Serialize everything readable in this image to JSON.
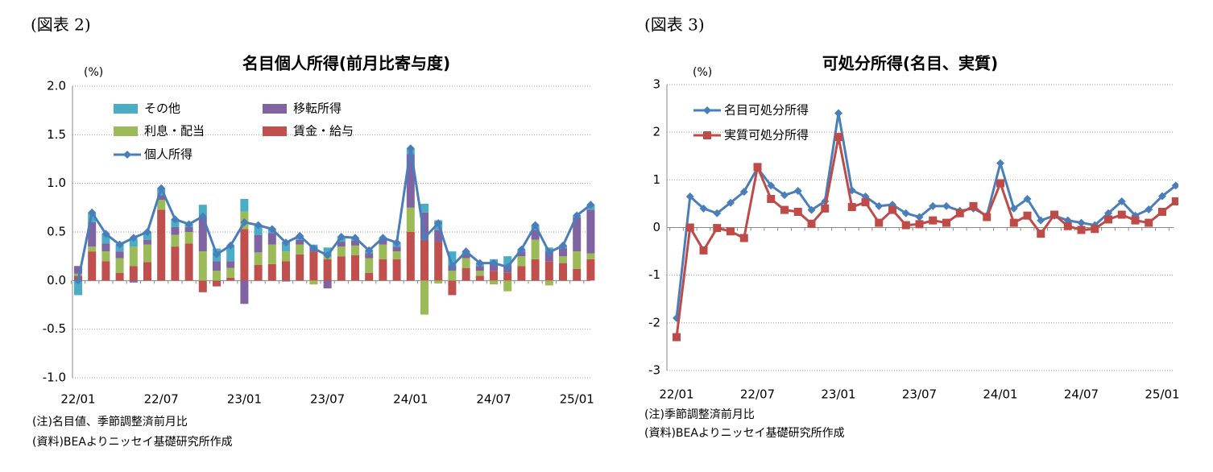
{
  "chart_data": [
    {
      "type": "bar",
      "stacked": true,
      "figure_label": "(図表 2)",
      "title": "名目個人所得(前月比寄与度)",
      "unit": "(%)",
      "notes": [
        "(注)名目値、季節調整済前月比",
        "(資料)BEAよりニッセイ基礎研究所作成"
      ],
      "categories": [
        "22/01",
        null,
        null,
        null,
        null,
        null,
        "22/07",
        null,
        null,
        null,
        null,
        null,
        "23/01",
        null,
        null,
        null,
        null,
        null,
        "23/07",
        null,
        null,
        null,
        null,
        null,
        "24/01",
        null,
        null,
        null,
        null,
        null,
        "24/07",
        null,
        null,
        null,
        null,
        null,
        "25/01",
        null
      ],
      "series": [
        {
          "name": "その他",
          "type": "bar",
          "color": "#4bacc6",
          "values": [
            -0.15,
            0.1,
            0.1,
            0.07,
            0.08,
            0.08,
            0.07,
            0.08,
            0.03,
            0.13,
            0.13,
            0.16,
            0.13,
            0.1,
            0.04,
            0.1,
            0.04,
            0.02,
            0.09,
            0.05,
            0.03,
            0.03,
            0.02,
            0.04,
            0.06,
            0.09,
            0.1,
            0.15,
            0.02,
            0.03,
            0.04,
            0.09,
            0.02,
            0.05,
            0.04,
            0.03,
            0.02,
            0.05
          ]
        },
        {
          "name": "移転所得",
          "type": "bar",
          "color": "#8064a2",
          "values": [
            0.08,
            0.25,
            0.08,
            0.07,
            -0.02,
            0.05,
            0.05,
            0.08,
            0.05,
            0.35,
            0.1,
            0.07,
            -0.24,
            0.18,
            0.12,
            -0.01,
            0.05,
            0.05,
            -0.08,
            0.05,
            0.05,
            0.05,
            0.05,
            0.05,
            0.55,
            0.28,
            0.12,
            0.05,
            0.05,
            0.05,
            0.08,
            0.08,
            0.05,
            0.1,
            0.1,
            0.08,
            0.35,
            0.45
          ]
        },
        {
          "name": "利息・配当",
          "type": "bar",
          "color": "#9bbb59",
          "values": [
            0.02,
            0.05,
            0.1,
            0.15,
            0.2,
            0.18,
            0.1,
            0.12,
            0.12,
            0.3,
            0.1,
            0.1,
            0.18,
            0.13,
            0.2,
            0.1,
            0.1,
            -0.04,
            0.03,
            0.1,
            0.1,
            0.15,
            0.15,
            0.08,
            0.25,
            -0.35,
            -0.03,
            0.1,
            0.1,
            0.05,
            -0.04,
            -0.11,
            0.1,
            0.2,
            -0.05,
            0.07,
            0.18,
            0.06
          ]
        },
        {
          "name": "賃金・給与",
          "type": "bar",
          "color": "#c0504d",
          "values": [
            0.05,
            0.3,
            0.2,
            0.08,
            0.15,
            0.19,
            0.73,
            0.35,
            0.38,
            -0.12,
            -0.06,
            0.03,
            0.53,
            0.16,
            0.17,
            0.2,
            0.27,
            0.3,
            0.22,
            0.25,
            0.26,
            0.08,
            0.22,
            0.22,
            0.5,
            0.42,
            0.4,
            -0.15,
            0.13,
            0.05,
            0.1,
            0.08,
            0.15,
            0.22,
            0.2,
            0.18,
            0.12,
            0.22
          ]
        },
        {
          "name": "個人所得",
          "type": "line",
          "color": "#4a7ebb",
          "marker": "diamond",
          "values": [
            0.0,
            0.7,
            0.48,
            0.37,
            0.44,
            0.5,
            0.95,
            0.63,
            0.58,
            0.66,
            0.27,
            0.36,
            0.6,
            0.57,
            0.53,
            0.39,
            0.46,
            0.33,
            0.26,
            0.45,
            0.44,
            0.31,
            0.44,
            0.39,
            1.36,
            0.44,
            0.59,
            0.15,
            0.3,
            0.18,
            0.18,
            0.14,
            0.32,
            0.57,
            0.29,
            0.36,
            0.67,
            0.78
          ]
        }
      ],
      "ylim": [
        -1,
        2
      ],
      "yticks": [
        {
          "value": -1,
          "label": "-1.0"
        },
        -0.5,
        {
          "value": 0,
          "label": "0.0"
        },
        0.5,
        {
          "value": 1,
          "label": "1.0"
        },
        1.5,
        {
          "value": 2,
          "label": "2.0"
        }
      ],
      "grid": true,
      "legend": "top-left"
    },
    {
      "type": "line",
      "figure_label": "(図表 3)",
      "title": "可処分所得(名目、実質)",
      "unit": "(%)",
      "notes": [
        "(注)季節調整済前月比",
        "(資料)BEAよりニッセイ基礎研究所作成"
      ],
      "categories": [
        "22/01",
        null,
        null,
        null,
        null,
        null,
        "22/07",
        null,
        null,
        null,
        null,
        null,
        "23/01",
        null,
        null,
        null,
        null,
        null,
        "23/07",
        null,
        null,
        null,
        null,
        null,
        "24/01",
        null,
        null,
        null,
        null,
        null,
        "24/07",
        null,
        null,
        null,
        null,
        null,
        "25/01",
        null
      ],
      "series": [
        {
          "name": "名目可処分所得",
          "color": "#4a7ebb",
          "marker": "diamond",
          "values": [
            -1.9,
            0.65,
            0.4,
            0.3,
            0.52,
            0.75,
            1.25,
            0.88,
            0.68,
            0.77,
            0.37,
            0.55,
            2.4,
            0.78,
            0.65,
            0.45,
            0.48,
            0.3,
            0.22,
            0.45,
            0.45,
            0.35,
            0.4,
            0.25,
            1.35,
            0.4,
            0.6,
            0.15,
            0.25,
            0.15,
            0.1,
            0.05,
            0.3,
            0.55,
            0.25,
            0.38,
            0.66,
            0.88
          ]
        },
        {
          "name": "実質可処分所得",
          "color": "#be4b48",
          "marker": "square",
          "values": [
            -2.3,
            0.0,
            -0.48,
            -0.01,
            -0.08,
            -0.22,
            1.27,
            0.6,
            0.37,
            0.33,
            0.08,
            0.4,
            1.9,
            0.43,
            0.53,
            0.1,
            0.37,
            0.05,
            0.07,
            0.15,
            0.1,
            0.3,
            0.45,
            0.22,
            0.93,
            0.1,
            0.25,
            -0.13,
            0.27,
            0.03,
            -0.05,
            -0.03,
            0.17,
            0.27,
            0.15,
            0.1,
            0.33,
            0.55
          ]
        }
      ],
      "ylim": [
        -3,
        3
      ],
      "yticks": [
        -3,
        -2,
        -1,
        0,
        1,
        2,
        3
      ],
      "grid": true,
      "legend": "top-left"
    }
  ]
}
